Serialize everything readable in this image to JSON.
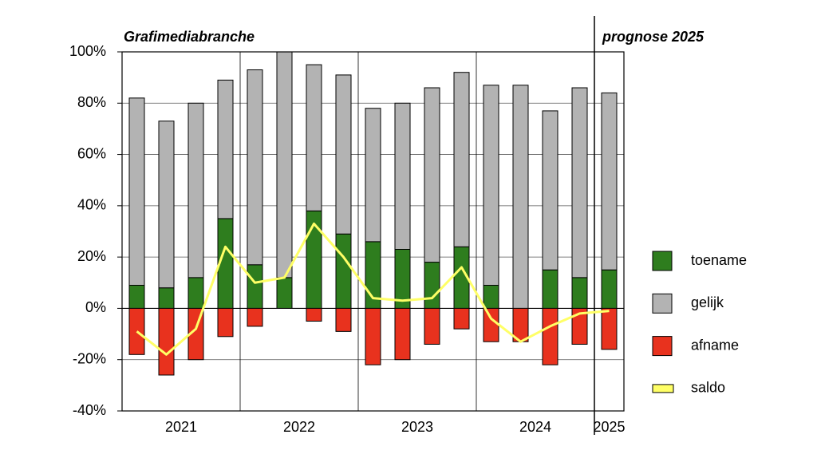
{
  "chart_data": {
    "type": "stacked_bar",
    "annotations": [
      "Grafimediabranche",
      "prognose 2025"
    ],
    "categories": [
      null,
      null,
      null,
      null,
      null,
      null,
      null,
      null,
      null,
      null,
      null,
      null,
      null,
      null,
      null,
      null,
      null
    ],
    "groups": [
      {
        "label": "2021",
        "count": 4
      },
      {
        "label": "2022",
        "count": 4
      },
      {
        "label": "2023",
        "count": 4
      },
      {
        "label": "2024",
        "count": 4
      },
      {
        "label": "2025",
        "count": 1
      }
    ],
    "series": [
      {
        "name": "toename",
        "color": "#2e7d1e",
        "values": [
          9,
          8,
          12,
          35,
          17,
          12,
          38,
          29,
          26,
          23,
          18,
          24,
          9,
          0,
          15,
          12,
          15
        ]
      },
      {
        "name": "gelijk",
        "color": "#b3b3b3",
        "values": [
          73,
          65,
          68,
          54,
          76,
          88,
          57,
          62,
          52,
          57,
          68,
          68,
          78,
          87,
          62,
          74,
          69
        ]
      },
      {
        "name": "afname",
        "color": "#e8321e",
        "values": [
          -18,
          -26,
          -20,
          -11,
          -7,
          0,
          -5,
          -9,
          -22,
          -20,
          -14,
          -8,
          -13,
          -13,
          -22,
          -14,
          -16
        ]
      },
      {
        "name": "saldo",
        "color": "#ffff66",
        "kind": "line",
        "values": [
          -9,
          -18,
          -8,
          24,
          10,
          12,
          33,
          20,
          4,
          3,
          4,
          16,
          -4,
          -13,
          -7,
          -2,
          -1
        ]
      }
    ],
    "ylim": [
      -40,
      100
    ],
    "yticks": [
      {
        "value": -40,
        "label": "-40%"
      },
      {
        "value": -20,
        "label": "-20%"
      },
      {
        "value": 0,
        "label": "0%"
      },
      {
        "value": 20,
        "label": "20%"
      },
      {
        "value": 40,
        "label": "40%"
      },
      {
        "value": 60,
        "label": "60%"
      },
      {
        "value": 80,
        "label": "80%"
      },
      {
        "value": 100,
        "label": "100%"
      }
    ],
    "grid": true,
    "legend": "right"
  }
}
